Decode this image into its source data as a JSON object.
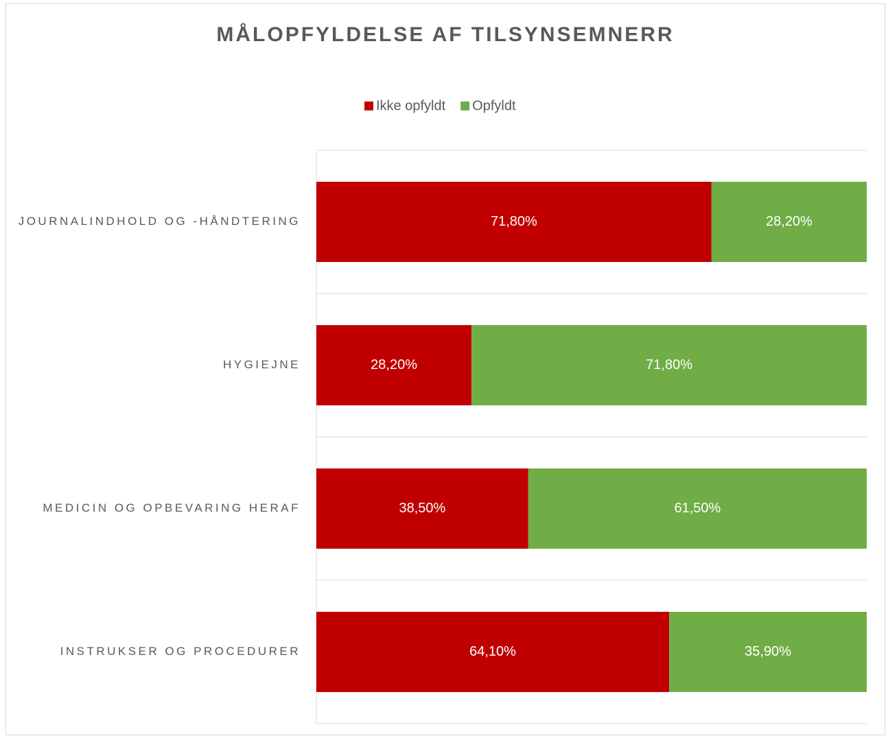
{
  "chart_data": {
    "type": "stacked-barh",
    "title": "MÅLOPFYLDELSE AF TILSYNSEMNERR",
    "categories": [
      "JOURNALINDHOLD OG -HÅNDTERING",
      "HYGIEJNE",
      "MEDICIN OG OPBEVARING HERAF",
      "INSTRUKSER OG PROCEDURER"
    ],
    "series": [
      {
        "name": "Ikke opfyldt",
        "color": "#c00000",
        "values": [
          71.8,
          28.2,
          38.5,
          64.1
        ],
        "value_labels": [
          "71,80%",
          "28,20%",
          "38,50%",
          "64,10%"
        ]
      },
      {
        "name": "Opfyldt",
        "color": "#70ad47",
        "values": [
          28.2,
          71.8,
          61.5,
          35.9
        ],
        "value_labels": [
          "28,20%",
          "71,80%",
          "61,50%",
          "35,90%"
        ]
      }
    ],
    "xlim": [
      0,
      100
    ],
    "legend": "top"
  }
}
